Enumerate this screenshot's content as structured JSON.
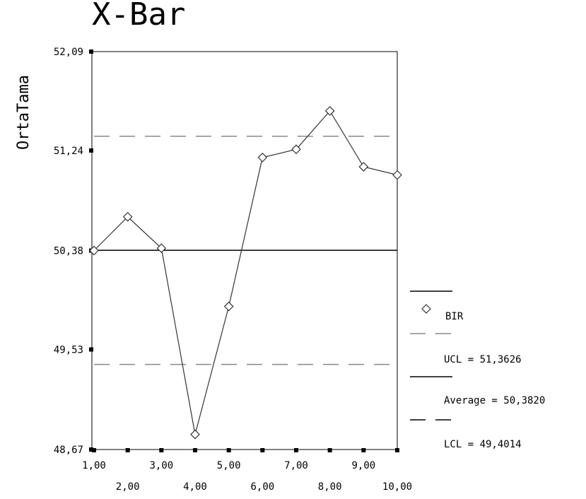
{
  "chart_data": {
    "type": "line",
    "title": "X-Bar",
    "ylabel": "OrtaTama",
    "xlabel": "",
    "x": [
      1,
      2,
      3,
      4,
      5,
      6,
      7,
      8,
      9,
      10
    ],
    "xlim": [
      1,
      10
    ],
    "ylim": [
      48.67,
      52.09
    ],
    "x_tick_labels": [
      "1,00",
      "2,00",
      "3,00",
      "4,00",
      "5,00",
      "6,00",
      "7,00",
      "8,00",
      "9,00",
      "10,00"
    ],
    "y_ticks": [
      48.67,
      49.53,
      50.38,
      51.24,
      52.09
    ],
    "y_tick_labels": [
      "48,67",
      "49,53",
      "50,38",
      "51,24",
      "52,09"
    ],
    "series": [
      {
        "name": "BIR",
        "values": [
          50.38,
          50.67,
          50.4,
          48.8,
          49.9,
          51.18,
          51.25,
          51.58,
          51.1,
          51.03
        ],
        "marker": "diamond",
        "color": "#333333"
      }
    ],
    "control_lines": [
      {
        "name": "UCL",
        "value": 51.3626,
        "style": "dashed",
        "color": "#888888"
      },
      {
        "name": "Average",
        "value": 50.382,
        "style": "solid",
        "color": "#000000"
      },
      {
        "name": "LCL",
        "value": 49.4014,
        "style": "dashed",
        "color": "#888888"
      }
    ],
    "grid": false,
    "legend_position": "right",
    "legend": {
      "series_label": "BIR",
      "ucl_label": "UCL = 51,3626",
      "avg_label": "Average = 50,3820",
      "lcl_label": "LCL = 49,4014"
    }
  }
}
